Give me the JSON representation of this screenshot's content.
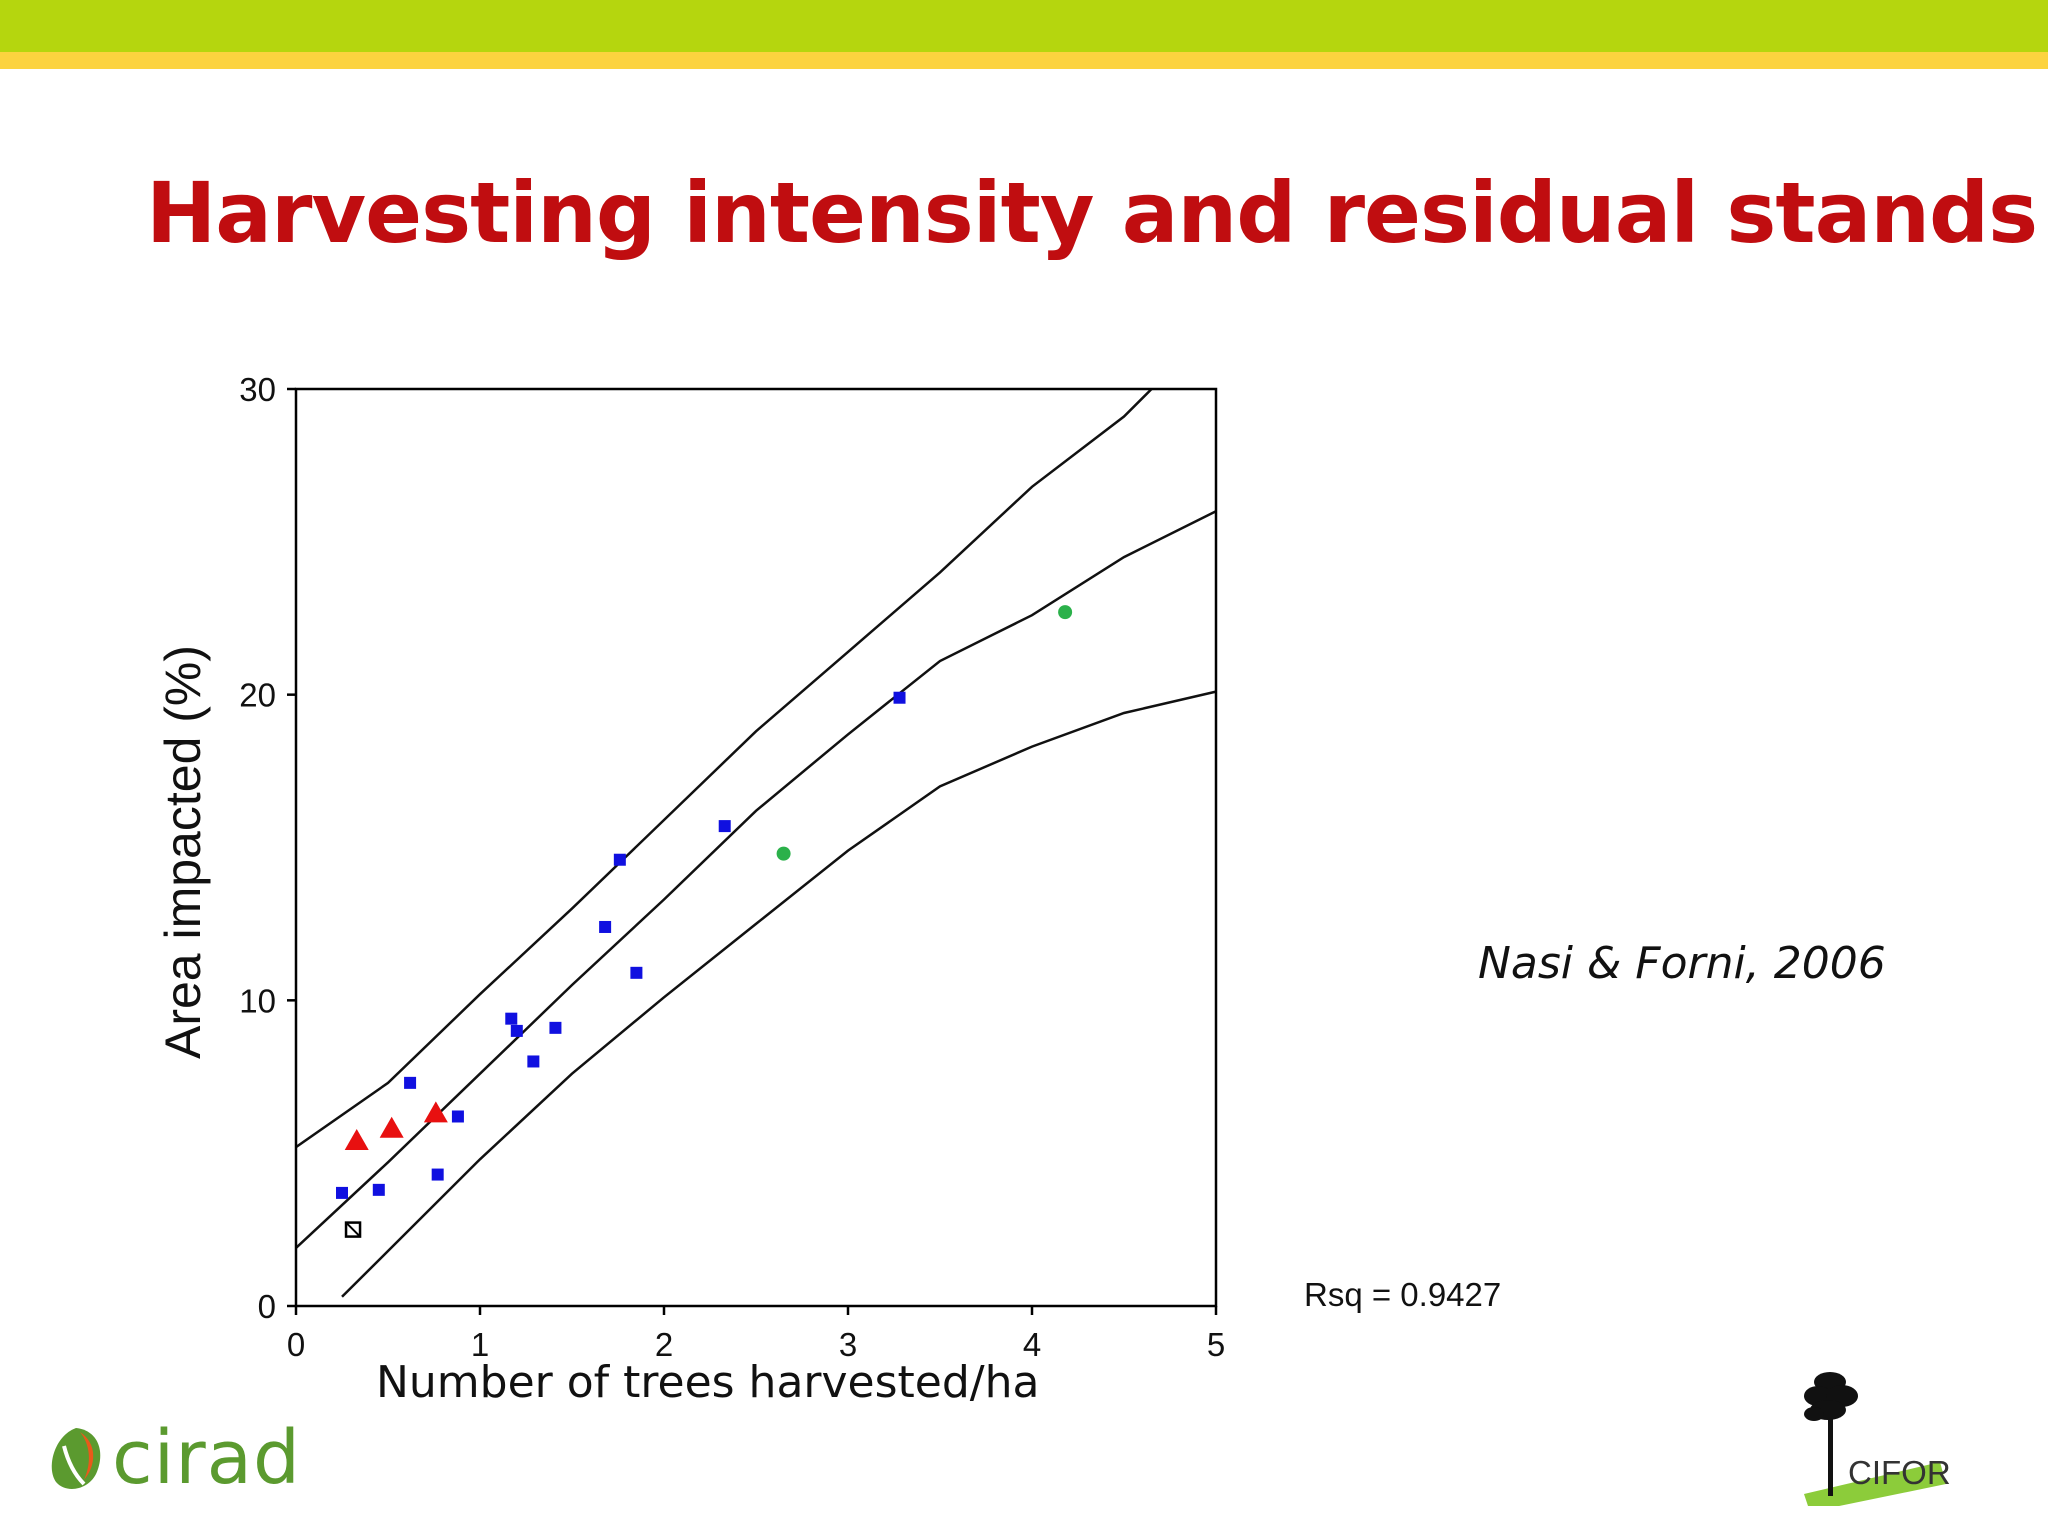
{
  "slide": {
    "title": "Harvesting intensity and residual stands",
    "citation": "Nasi & Forni, 2006",
    "rsq_text": "Rsq = 0.9427"
  },
  "logos": {
    "left": "cirad",
    "right": "CIFOR"
  },
  "colors": {
    "top_band_green": "#b5d60e",
    "top_band_yellow": "#fcd33f",
    "title": "#c00d10",
    "square_series": "#1010e0",
    "triangle_series": "#e81010",
    "circle_series": "#2bb14a"
  },
  "chart_data": {
    "type": "scatter",
    "xlabel": "Number of trees harvested/ha",
    "ylabel": "Area impacted (%)",
    "xlim": [
      0,
      5
    ],
    "ylim": [
      0,
      30
    ],
    "xticks": [
      "0",
      "1",
      "2",
      "3",
      "4",
      "5"
    ],
    "yticks": [
      "0",
      "10",
      "20",
      "30"
    ],
    "grid": false,
    "series": [
      {
        "marker": "square",
        "color": "#1010e0",
        "points": [
          [
            0.25,
            3.7
          ],
          [
            0.45,
            3.8
          ],
          [
            0.62,
            7.3
          ],
          [
            0.77,
            4.3
          ],
          [
            0.88,
            6.2
          ],
          [
            1.17,
            9.4
          ],
          [
            1.2,
            9.0
          ],
          [
            1.29,
            8.0
          ],
          [
            1.41,
            9.1
          ],
          [
            1.68,
            12.4
          ],
          [
            1.76,
            14.6
          ],
          [
            1.85,
            10.9
          ],
          [
            2.33,
            15.7
          ],
          [
            3.28,
            19.9
          ]
        ]
      },
      {
        "marker": "triangle",
        "color": "#e81010",
        "points": [
          [
            0.33,
            5.4
          ],
          [
            0.52,
            5.8
          ],
          [
            0.76,
            6.3
          ]
        ]
      },
      {
        "marker": "circle",
        "color": "#2bb14a",
        "points": [
          [
            2.65,
            14.8
          ],
          [
            4.18,
            22.7
          ]
        ]
      },
      {
        "marker": "crossed-square",
        "color": "#000000",
        "points": [
          [
            0.31,
            2.5
          ]
        ]
      }
    ],
    "fit_lines": [
      {
        "role": "upper",
        "points": [
          [
            0,
            5.2
          ],
          [
            0.5,
            7.3
          ],
          [
            1,
            10.2
          ],
          [
            1.5,
            13.0
          ],
          [
            2,
            15.9
          ],
          [
            2.5,
            18.8
          ],
          [
            3,
            21.4
          ],
          [
            3.5,
            24.0
          ],
          [
            4,
            26.8
          ],
          [
            4.5,
            29.1
          ],
          [
            4.65,
            30
          ]
        ]
      },
      {
        "role": "fit",
        "points": [
          [
            0,
            1.9
          ],
          [
            0.5,
            4.7
          ],
          [
            1,
            7.6
          ],
          [
            1.5,
            10.5
          ],
          [
            2,
            13.3
          ],
          [
            2.5,
            16.2
          ],
          [
            3,
            18.7
          ],
          [
            3.5,
            21.1
          ],
          [
            4,
            22.6
          ],
          [
            4.5,
            24.5
          ],
          [
            5,
            26.0
          ]
        ]
      },
      {
        "role": "lower",
        "points": [
          [
            0.25,
            0.3
          ],
          [
            0.5,
            1.8
          ],
          [
            1,
            4.8
          ],
          [
            1.5,
            7.6
          ],
          [
            2,
            10.1
          ],
          [
            2.5,
            12.5
          ],
          [
            3,
            14.9
          ],
          [
            3.5,
            17.0
          ],
          [
            4,
            18.3
          ],
          [
            4.5,
            19.4
          ],
          [
            5,
            20.1
          ]
        ]
      }
    ]
  }
}
